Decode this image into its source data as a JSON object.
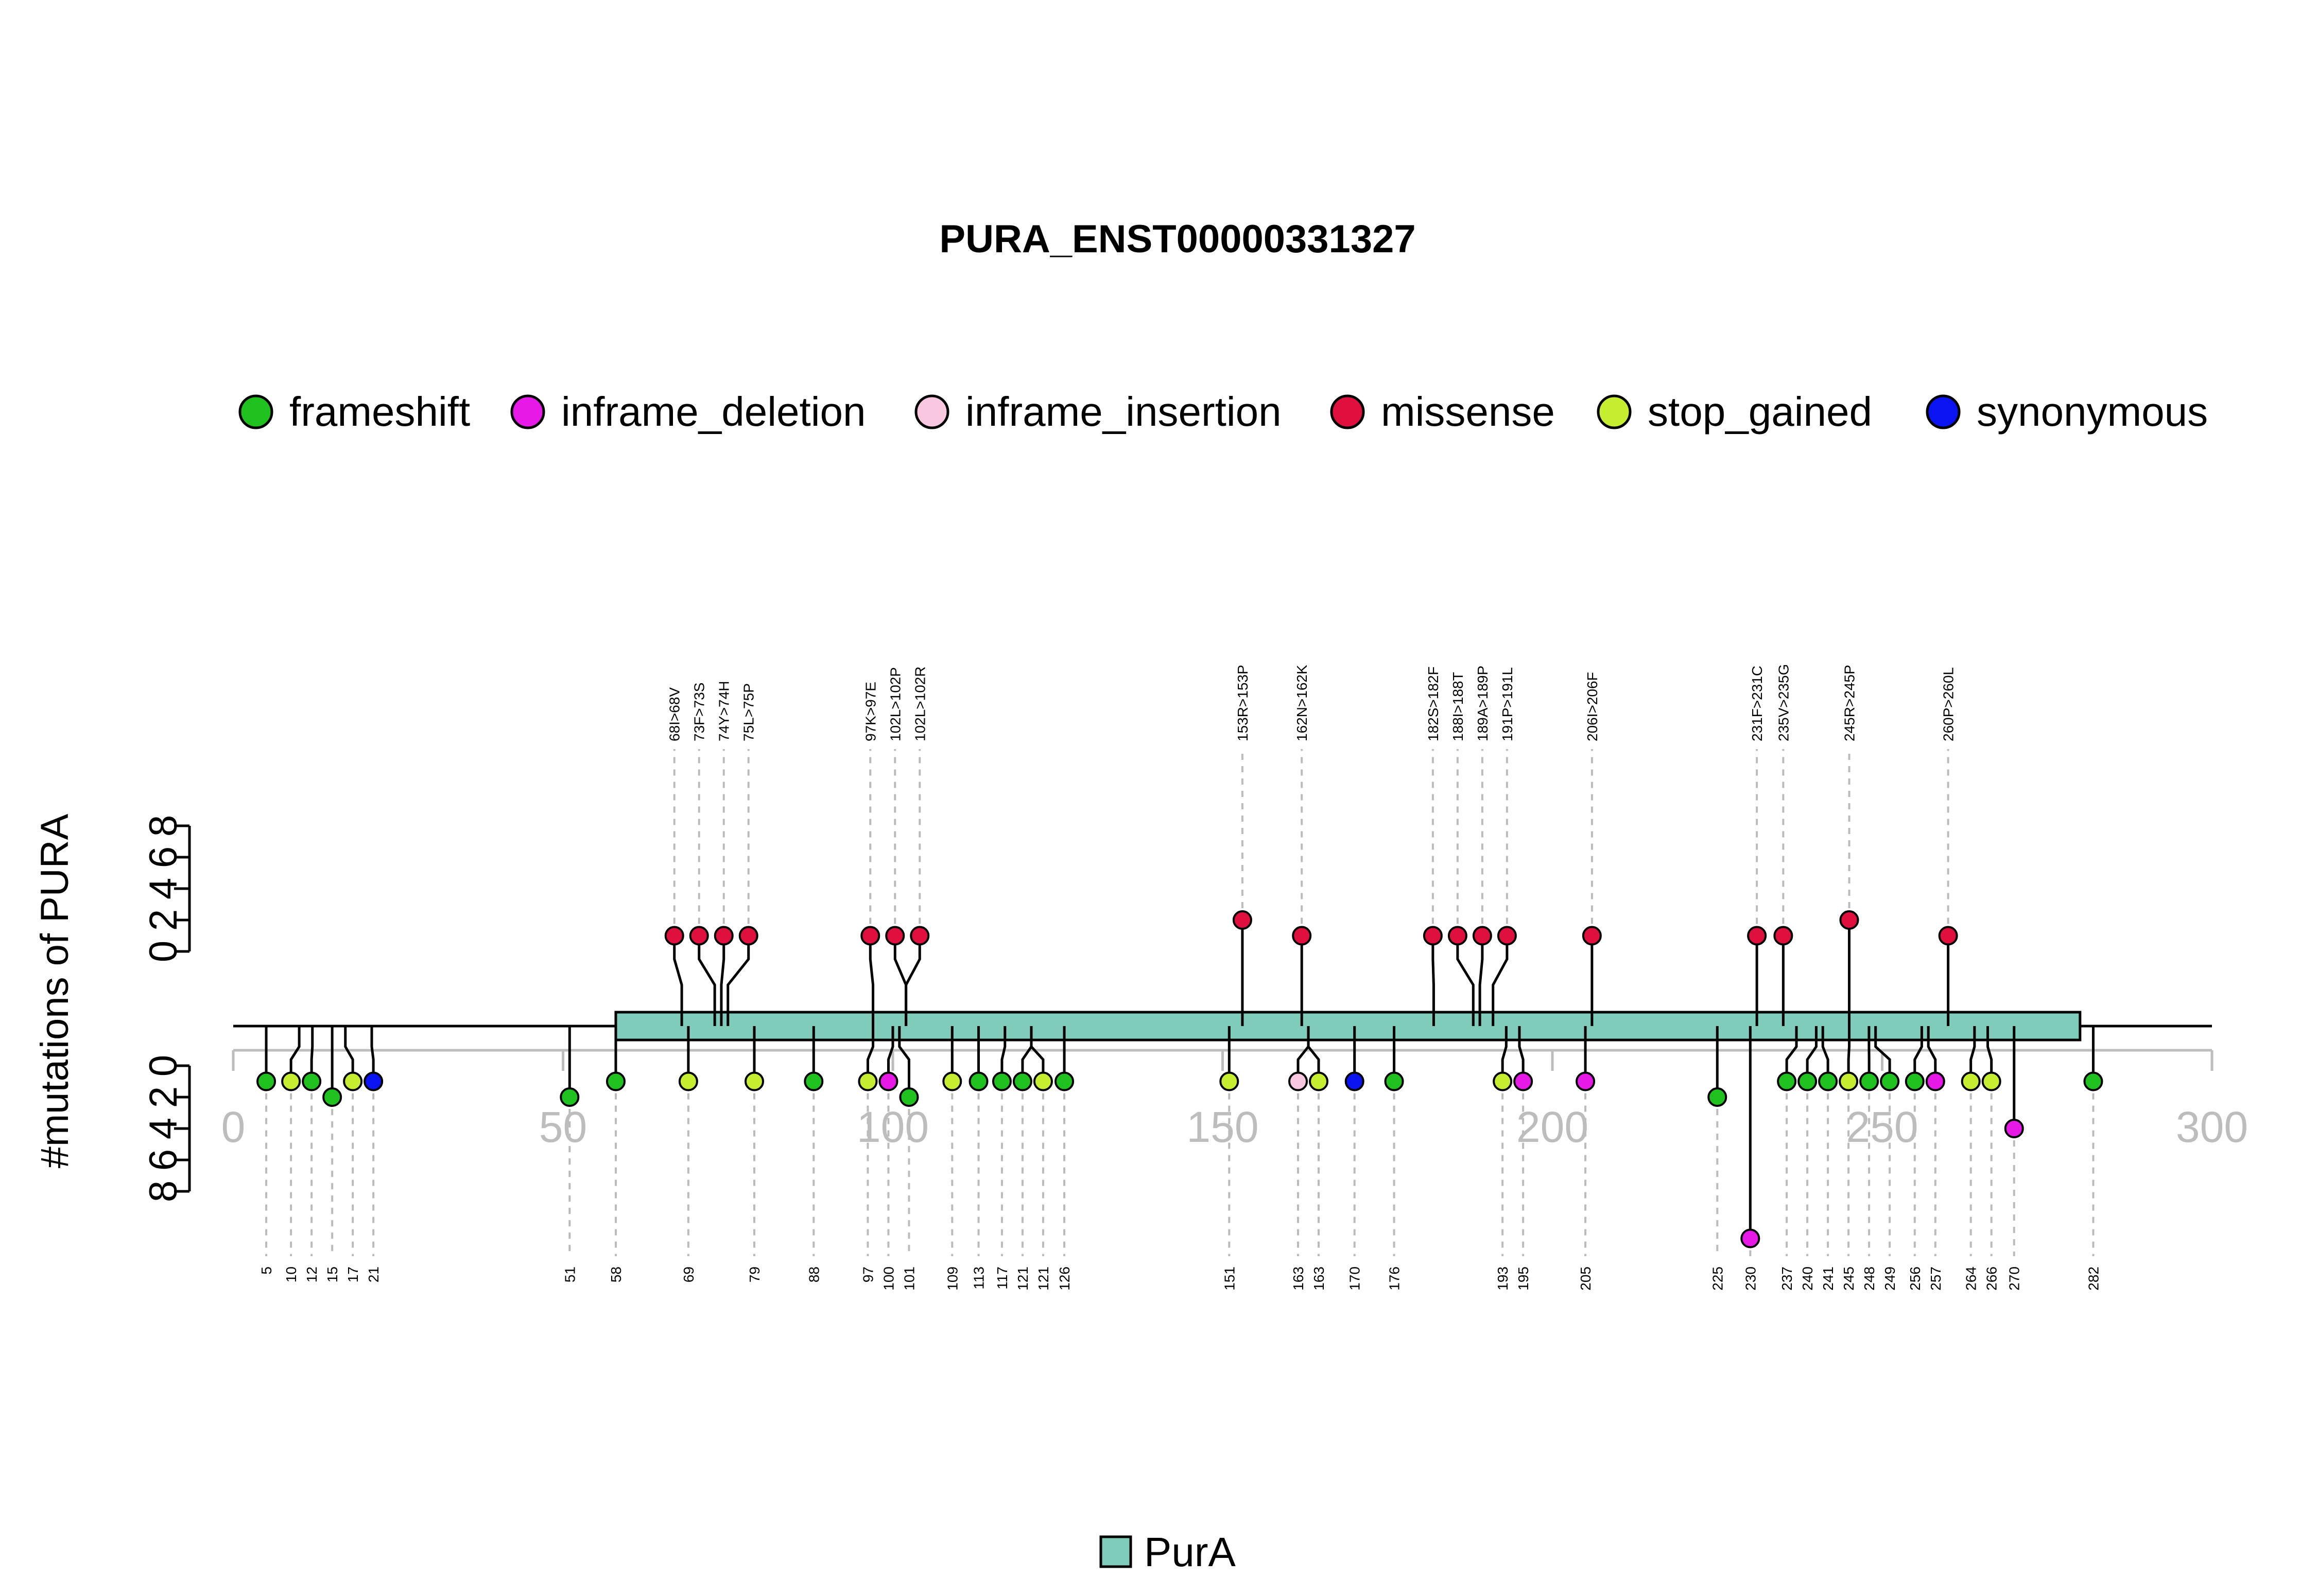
{
  "chart_data": {
    "type": "lollipop",
    "title": "PURA_ENST00000331327",
    "ylabel": "#mutations of PURA",
    "xlim": [
      0,
      300
    ],
    "x_ticks": [
      "0",
      "50",
      "100",
      "150",
      "200",
      "250",
      "300"
    ],
    "y_ticks": [
      "0",
      "2",
      "4",
      "6",
      "8"
    ],
    "ylim": [
      0,
      8
    ],
    "legend": [
      {
        "label": "frameshift",
        "color": "#1fc11f"
      },
      {
        "label": "inframe_deletion",
        "color": "#e619e6"
      },
      {
        "label": "inframe_insertion",
        "color": "#f9c7df"
      },
      {
        "label": "missense",
        "color": "#e0103e"
      },
      {
        "label": "stop_gained",
        "color": "#c6ee31"
      },
      {
        "label": "synonymous",
        "color": "#0a14f0"
      }
    ],
    "domain_legend": {
      "label": "PurA",
      "color": "#7fccbb"
    },
    "domains": [
      {
        "name": "PurA",
        "start": 58,
        "end": 280,
        "color": "#7fccbb"
      }
    ],
    "top_mutations": [
      {
        "pos": 68,
        "label": "68I>68V",
        "type": "missense",
        "count": 1
      },
      {
        "pos": 73,
        "label": "73F>73S",
        "type": "missense",
        "count": 1
      },
      {
        "pos": 74,
        "label": "74Y>74H",
        "type": "missense",
        "count": 1
      },
      {
        "pos": 75,
        "label": "75L>75P",
        "type": "missense",
        "count": 1
      },
      {
        "pos": 97,
        "label": "97K>97E",
        "type": "missense",
        "count": 1
      },
      {
        "pos": 102,
        "label": "102L>102P",
        "type": "missense",
        "count": 1
      },
      {
        "pos": 102,
        "label": "102L>102R",
        "type": "missense",
        "count": 1
      },
      {
        "pos": 153,
        "label": "153R>153P",
        "type": "missense",
        "count": 2
      },
      {
        "pos": 162,
        "label": "162N>162K",
        "type": "missense",
        "count": 1
      },
      {
        "pos": 182,
        "label": "182S>182F",
        "type": "missense",
        "count": 1
      },
      {
        "pos": 188,
        "label": "188I>188T",
        "type": "missense",
        "count": 1
      },
      {
        "pos": 189,
        "label": "189A>189P",
        "type": "missense",
        "count": 1
      },
      {
        "pos": 191,
        "label": "191P>191L",
        "type": "missense",
        "count": 1
      },
      {
        "pos": 206,
        "label": "206I>206F",
        "type": "missense",
        "count": 1
      },
      {
        "pos": 231,
        "label": "231F>231C",
        "type": "missense",
        "count": 1
      },
      {
        "pos": 235,
        "label": "235V>235G",
        "type": "missense",
        "count": 1
      },
      {
        "pos": 245,
        "label": "245R>245P",
        "type": "missense",
        "count": 2
      },
      {
        "pos": 260,
        "label": "260P>260L",
        "type": "missense",
        "count": 1
      }
    ],
    "bottom_mutations": [
      {
        "pos": 5,
        "label": "5",
        "type": "frameshift",
        "count": 1
      },
      {
        "pos": 10,
        "label": "10",
        "type": "stop_gained",
        "count": 1
      },
      {
        "pos": 12,
        "label": "12",
        "type": "frameshift",
        "count": 1
      },
      {
        "pos": 15,
        "label": "15",
        "type": "frameshift",
        "count": 2
      },
      {
        "pos": 17,
        "label": "17",
        "type": "stop_gained",
        "count": 1
      },
      {
        "pos": 21,
        "label": "21",
        "type": "synonymous",
        "count": 1
      },
      {
        "pos": 51,
        "label": "51",
        "type": "frameshift",
        "count": 2
      },
      {
        "pos": 58,
        "label": "58",
        "type": "frameshift",
        "count": 1
      },
      {
        "pos": 69,
        "label": "69",
        "type": "stop_gained",
        "count": 1
      },
      {
        "pos": 79,
        "label": "79",
        "type": "stop_gained",
        "count": 1
      },
      {
        "pos": 88,
        "label": "88",
        "type": "frameshift",
        "count": 1
      },
      {
        "pos": 97,
        "label": "97",
        "type": "stop_gained",
        "count": 1
      },
      {
        "pos": 100,
        "label": "100",
        "type": "inframe_deletion",
        "count": 1
      },
      {
        "pos": 101,
        "label": "101",
        "type": "frameshift",
        "count": 2
      },
      {
        "pos": 109,
        "label": "109",
        "type": "stop_gained",
        "count": 1
      },
      {
        "pos": 113,
        "label": "113",
        "type": "frameshift",
        "count": 1
      },
      {
        "pos": 117,
        "label": "117",
        "type": "frameshift",
        "count": 1
      },
      {
        "pos": 121,
        "label": "121",
        "type": "frameshift",
        "count": 1
      },
      {
        "pos": 121,
        "label": "121",
        "type": "stop_gained",
        "count": 1
      },
      {
        "pos": 126,
        "label": "126",
        "type": "frameshift",
        "count": 1
      },
      {
        "pos": 151,
        "label": "151",
        "type": "stop_gained",
        "count": 1
      },
      {
        "pos": 163,
        "label": "163",
        "type": "inframe_insertion",
        "count": 1
      },
      {
        "pos": 163,
        "label": "163",
        "type": "stop_gained",
        "count": 1
      },
      {
        "pos": 170,
        "label": "170",
        "type": "synonymous",
        "count": 1
      },
      {
        "pos": 176,
        "label": "176",
        "type": "frameshift",
        "count": 1
      },
      {
        "pos": 193,
        "label": "193",
        "type": "stop_gained",
        "count": 1
      },
      {
        "pos": 195,
        "label": "195",
        "type": "inframe_deletion",
        "count": 1
      },
      {
        "pos": 205,
        "label": "205",
        "type": "inframe_deletion",
        "count": 1
      },
      {
        "pos": 225,
        "label": "225",
        "type": "frameshift",
        "count": 2
      },
      {
        "pos": 230,
        "label": "230",
        "type": "inframe_deletion",
        "count": 11
      },
      {
        "pos": 237,
        "label": "237",
        "type": "frameshift",
        "count": 1
      },
      {
        "pos": 240,
        "label": "240",
        "type": "frameshift",
        "count": 1
      },
      {
        "pos": 241,
        "label": "241",
        "type": "frameshift",
        "count": 1
      },
      {
        "pos": 245,
        "label": "245",
        "type": "stop_gained",
        "count": 1
      },
      {
        "pos": 248,
        "label": "248",
        "type": "frameshift",
        "count": 1
      },
      {
        "pos": 249,
        "label": "249",
        "type": "frameshift",
        "count": 1
      },
      {
        "pos": 256,
        "label": "256",
        "type": "frameshift",
        "count": 1
      },
      {
        "pos": 257,
        "label": "257",
        "type": "inframe_deletion",
        "count": 1
      },
      {
        "pos": 264,
        "label": "264",
        "type": "stop_gained",
        "count": 1
      },
      {
        "pos": 266,
        "label": "266",
        "type": "stop_gained",
        "count": 1
      },
      {
        "pos": 270,
        "label": "270",
        "type": "inframe_deletion",
        "count": 4
      },
      {
        "pos": 282,
        "label": "282",
        "type": "frameshift",
        "count": 1
      }
    ]
  }
}
